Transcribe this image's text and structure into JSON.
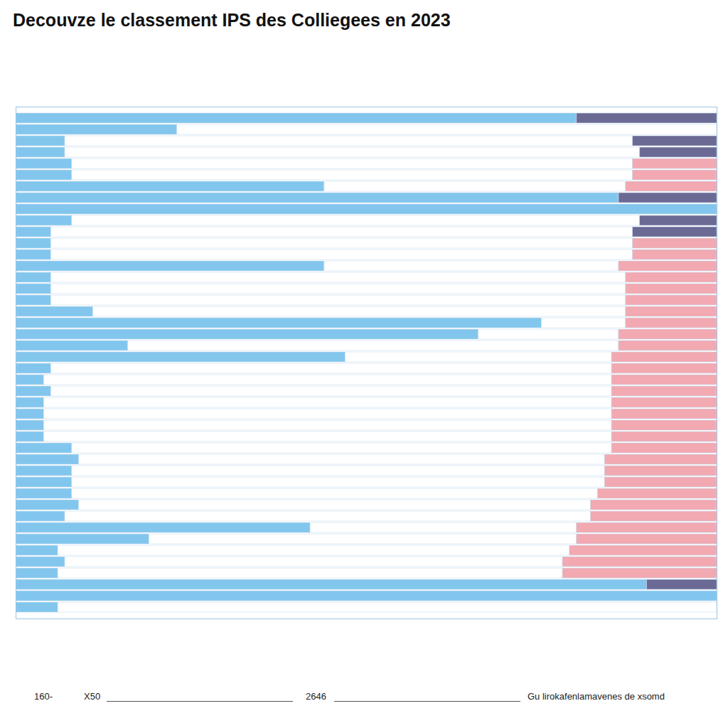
{
  "chart_data": {
    "type": "bar",
    "title": "Decouvze le classement IPS des Colliegees en 2023",
    "orientation": "horizontal",
    "stacked": true,
    "tick_labels": false,
    "grid": false,
    "categories": [
      null,
      null,
      null,
      null,
      null,
      null,
      null,
      null,
      null,
      null,
      null,
      null,
      null,
      null,
      null,
      null,
      null,
      null,
      null,
      null,
      null,
      null,
      null,
      null,
      null,
      null,
      null,
      null,
      null,
      null,
      null,
      null,
      null,
      null,
      null,
      null,
      null,
      null,
      null,
      null,
      null,
      null,
      null,
      null
    ],
    "xlim": [
      0,
      100
    ],
    "series": [
      {
        "color": "#82c6ee",
        "values": [
          80,
          23,
          7,
          7,
          8,
          8,
          44,
          86,
          100,
          8,
          5,
          5,
          5,
          44,
          5,
          5,
          5,
          11,
          75,
          66,
          16,
          47,
          5,
          4,
          5,
          4,
          4,
          4,
          4,
          8,
          9,
          8,
          8,
          8,
          9,
          7,
          42,
          19,
          6,
          7,
          6,
          90,
          100,
          6
        ]
      },
      {
        "color": "#ffffff",
        "values": [
          0,
          77,
          81,
          82,
          80,
          80,
          43,
          0,
          0,
          81,
          83,
          83,
          83,
          42,
          82,
          82,
          82,
          76,
          12,
          20,
          70,
          38,
          80,
          81,
          80,
          81,
          81,
          81,
          81,
          77,
          75,
          76,
          76,
          75,
          73,
          75,
          38,
          61,
          73,
          71,
          72,
          0,
          0,
          94
        ]
      },
      {
        "color": "#f2a9b1",
        "values": [
          0,
          0,
          0,
          0,
          12,
          12,
          13,
          0,
          0,
          0,
          0,
          12,
          12,
          14,
          13,
          13,
          13,
          13,
          13,
          14,
          14,
          15,
          15,
          15,
          15,
          15,
          15,
          15,
          15,
          15,
          16,
          16,
          16,
          17,
          18,
          18,
          20,
          20,
          21,
          22,
          22,
          0,
          0,
          0
        ]
      },
      {
        "color": "#6b6a94",
        "values": [
          20,
          0,
          12,
          11,
          0,
          0,
          0,
          14,
          0,
          11,
          12,
          0,
          0,
          0,
          0,
          0,
          0,
          0,
          0,
          0,
          0,
          0,
          0,
          0,
          0,
          0,
          0,
          0,
          0,
          0,
          0,
          0,
          0,
          0,
          0,
          0,
          0,
          0,
          0,
          0,
          0,
          10,
          0,
          0
        ]
      }
    ],
    "annotations": [
      "160-",
      "X50",
      "2646",
      "Gu lirokafenlamavenes de xsomd"
    ]
  }
}
